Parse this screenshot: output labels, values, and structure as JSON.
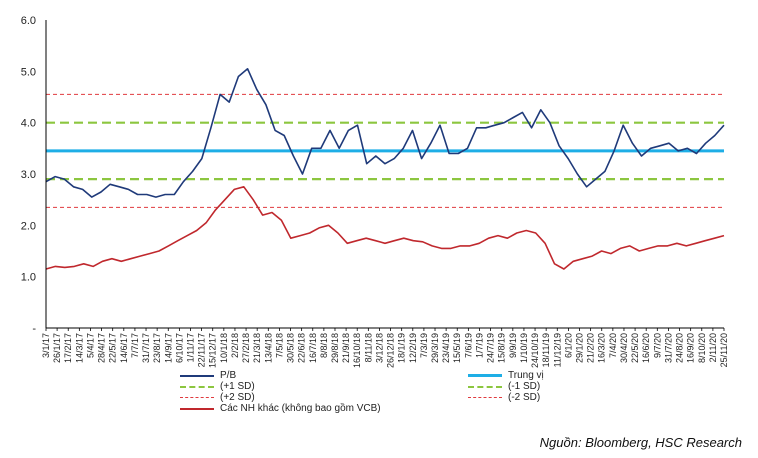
{
  "chart_data": {
    "type": "line",
    "title": "",
    "xlabel": "",
    "ylabel": "",
    "ylim": [
      0,
      6
    ],
    "y_ticks": [
      "-",
      "1.0",
      "2.0",
      "3.0",
      "4.0",
      "5.0",
      "6.0"
    ],
    "x_tick_labels": [
      "3/1/17",
      "26/1/17",
      "17/2/17",
      "14/3/17",
      "5/4/17",
      "28/4/17",
      "22/5/17",
      "14/6/17",
      "7/7/17",
      "31/7/17",
      "23/8/17",
      "14/9/17",
      "6/10/17",
      "1/11/17",
      "22/11/17",
      "15/12/17",
      "10/1/18",
      "2/2/18",
      "27/2/18",
      "21/3/18",
      "13/4/18",
      "7/5/18",
      "30/5/18",
      "22/6/18",
      "16/7/18",
      "8/8/18",
      "29/8/18",
      "21/9/18",
      "16/10/18",
      "8/11/18",
      "3/12/18",
      "26/12/18",
      "18/1/19",
      "12/2/19",
      "7/3/19",
      "29/3/19",
      "23/4/19",
      "15/5/19",
      "7/6/19",
      "1/7/19",
      "24/7/19",
      "15/8/19",
      "9/9/19",
      "1/10/19",
      "24/10/19",
      "18/11/19",
      "11/12/19",
      "6/1/20",
      "29/1/20",
      "21/2/20",
      "16/3/20",
      "7/4/20",
      "30/4/20",
      "22/5/20",
      "16/6/20",
      "9/7/20",
      "31/7/20",
      "24/8/20",
      "16/9/20",
      "8/10/20",
      "2/11/20",
      "25/11/20"
    ],
    "reference_lines": {
      "median": 3.45,
      "plus_1sd": 4.0,
      "minus_1sd": 2.9,
      "plus_2sd": 4.55,
      "minus_2sd": 2.35
    },
    "series": [
      {
        "name": "P/B",
        "color": "#1f3a7a",
        "values": [
          2.85,
          2.95,
          2.9,
          2.75,
          2.7,
          2.55,
          2.65,
          2.8,
          2.75,
          2.7,
          2.6,
          2.6,
          2.55,
          2.6,
          2.6,
          2.85,
          3.05,
          3.3,
          3.9,
          4.55,
          4.4,
          4.9,
          5.05,
          4.65,
          4.35,
          3.85,
          3.75,
          3.35,
          3.0,
          3.5,
          3.5,
          3.85,
          3.5,
          3.85,
          3.95,
          3.2,
          3.35,
          3.2,
          3.3,
          3.5,
          3.85,
          3.3,
          3.6,
          3.95,
          3.4,
          3.4,
          3.5,
          3.9,
          3.9,
          3.95,
          4.0,
          4.1,
          4.2,
          3.9,
          4.25,
          4.0,
          3.55,
          3.3,
          3.0,
          2.75,
          2.9,
          3.05,
          3.45,
          3.95,
          3.6,
          3.35,
          3.5,
          3.55,
          3.6,
          3.45,
          3.5,
          3.4,
          3.6,
          3.75,
          3.95
        ]
      },
      {
        "name": "Các NH khác (không bao gồm VCB)",
        "color": "#c0282d",
        "values": [
          1.15,
          1.2,
          1.18,
          1.2,
          1.25,
          1.2,
          1.3,
          1.35,
          1.3,
          1.35,
          1.4,
          1.45,
          1.5,
          1.6,
          1.7,
          1.8,
          1.9,
          2.05,
          2.3,
          2.5,
          2.7,
          2.75,
          2.5,
          2.2,
          2.25,
          2.1,
          1.75,
          1.8,
          1.85,
          1.95,
          2.0,
          1.85,
          1.65,
          1.7,
          1.75,
          1.7,
          1.65,
          1.7,
          1.75,
          1.7,
          1.68,
          1.6,
          1.55,
          1.55,
          1.6,
          1.6,
          1.65,
          1.75,
          1.8,
          1.75,
          1.85,
          1.9,
          1.85,
          1.65,
          1.25,
          1.15,
          1.3,
          1.35,
          1.4,
          1.5,
          1.45,
          1.55,
          1.6,
          1.5,
          1.55,
          1.6,
          1.6,
          1.65,
          1.6,
          1.65,
          1.7,
          1.75,
          1.8
        ]
      }
    ],
    "legend": [
      {
        "label": "P/B",
        "style": "solid",
        "color": "#1f3a7a"
      },
      {
        "label": "Trung vị",
        "style": "solid-thick",
        "color": "#1eaee6"
      },
      {
        "label": "(+1 SD)",
        "style": "dashed-thick",
        "color": "#8cc63f"
      },
      {
        "label": "(-1 SD)",
        "style": "dashed-thick",
        "color": "#8cc63f"
      },
      {
        "label": "(+2 SD)",
        "style": "dashed-thin",
        "color": "#e03a3e"
      },
      {
        "label": "(-2 SD)",
        "style": "dashed-thin",
        "color": "#e03a3e"
      },
      {
        "label": "Các NH khác (không bao gồm VCB)",
        "style": "solid",
        "color": "#c0282d"
      }
    ]
  },
  "source": "Nguồn: Bloomberg, HSC Research"
}
